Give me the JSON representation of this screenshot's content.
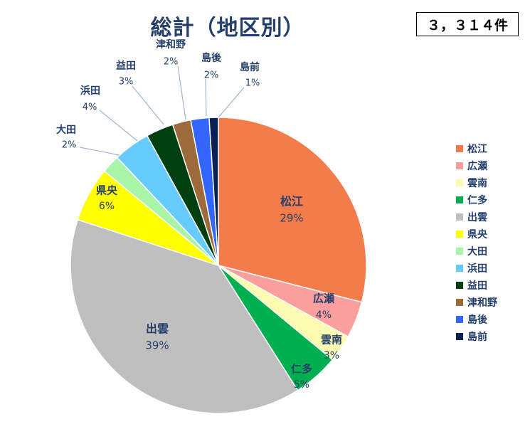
{
  "title": "総計（地区別）",
  "total": "３，３１４件",
  "chart_data": {
    "type": "pie",
    "title": "総計（地区別）",
    "categories": [
      "松江",
      "広瀬",
      "雲南",
      "仁多",
      "出雲",
      "県央",
      "大田",
      "浜田",
      "益田",
      "津和野",
      "島後",
      "島前"
    ],
    "values": [
      29,
      4,
      3,
      5,
      39,
      6,
      2,
      4,
      3,
      2,
      2,
      1
    ],
    "labels": [
      "29%",
      "4%",
      "3%",
      "5%",
      "39%",
      "6%",
      "2%",
      "4%",
      "3%",
      "2%",
      "2%",
      "1%"
    ],
    "colors": [
      "#f47c4a",
      "#fa9e9e",
      "#fdfbb0",
      "#00b050",
      "#bfbfbf",
      "#ffff00",
      "#a8f5a8",
      "#66ccff",
      "#003f0f",
      "#9c6a3b",
      "#3366ff",
      "#0b2055"
    ],
    "legend_position": "right",
    "start_angle_deg": 0,
    "direction": "clockwise"
  }
}
